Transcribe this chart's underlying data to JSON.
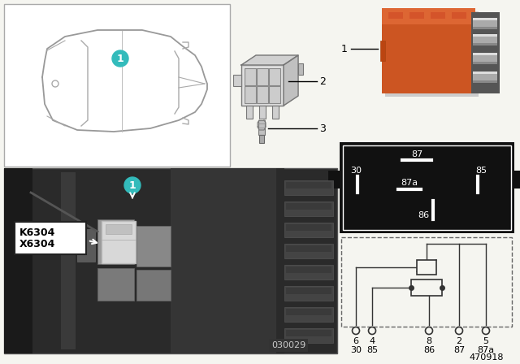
{
  "bg_color": "#f5f5f0",
  "doc_number": "470918",
  "photo_number": "030029",
  "relay_orange": "#cc5522",
  "relay_orange_light": "#dd6633",
  "relay_orange_dark": "#aa3311",
  "teal_color": "#33bbbb",
  "black_box_bg": "#111111",
  "photo_bg_dark": "#404040",
  "photo_bg_mid": "#555555",
  "photo_bg_light": "#888888",
  "white": "#ffffff",
  "pin_labels_top": [
    "87",
    "30",
    "87a",
    "85",
    "86"
  ],
  "pin_nums": [
    "6",
    "4",
    "8",
    "2",
    "5"
  ],
  "pin_names": [
    "30",
    "85",
    "86",
    "87",
    "87a"
  ]
}
